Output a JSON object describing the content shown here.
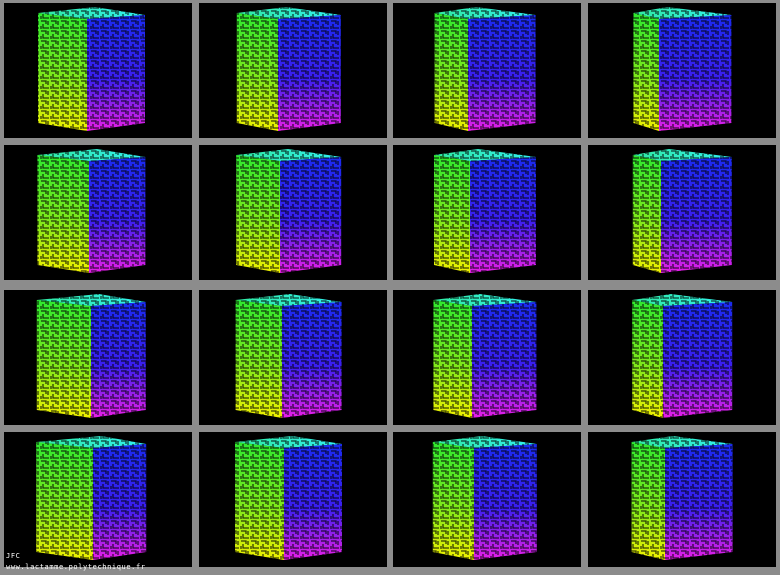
{
  "footer": {
    "author": "JFC",
    "url": "www.lactamme.polytechnique.fr"
  }
}
